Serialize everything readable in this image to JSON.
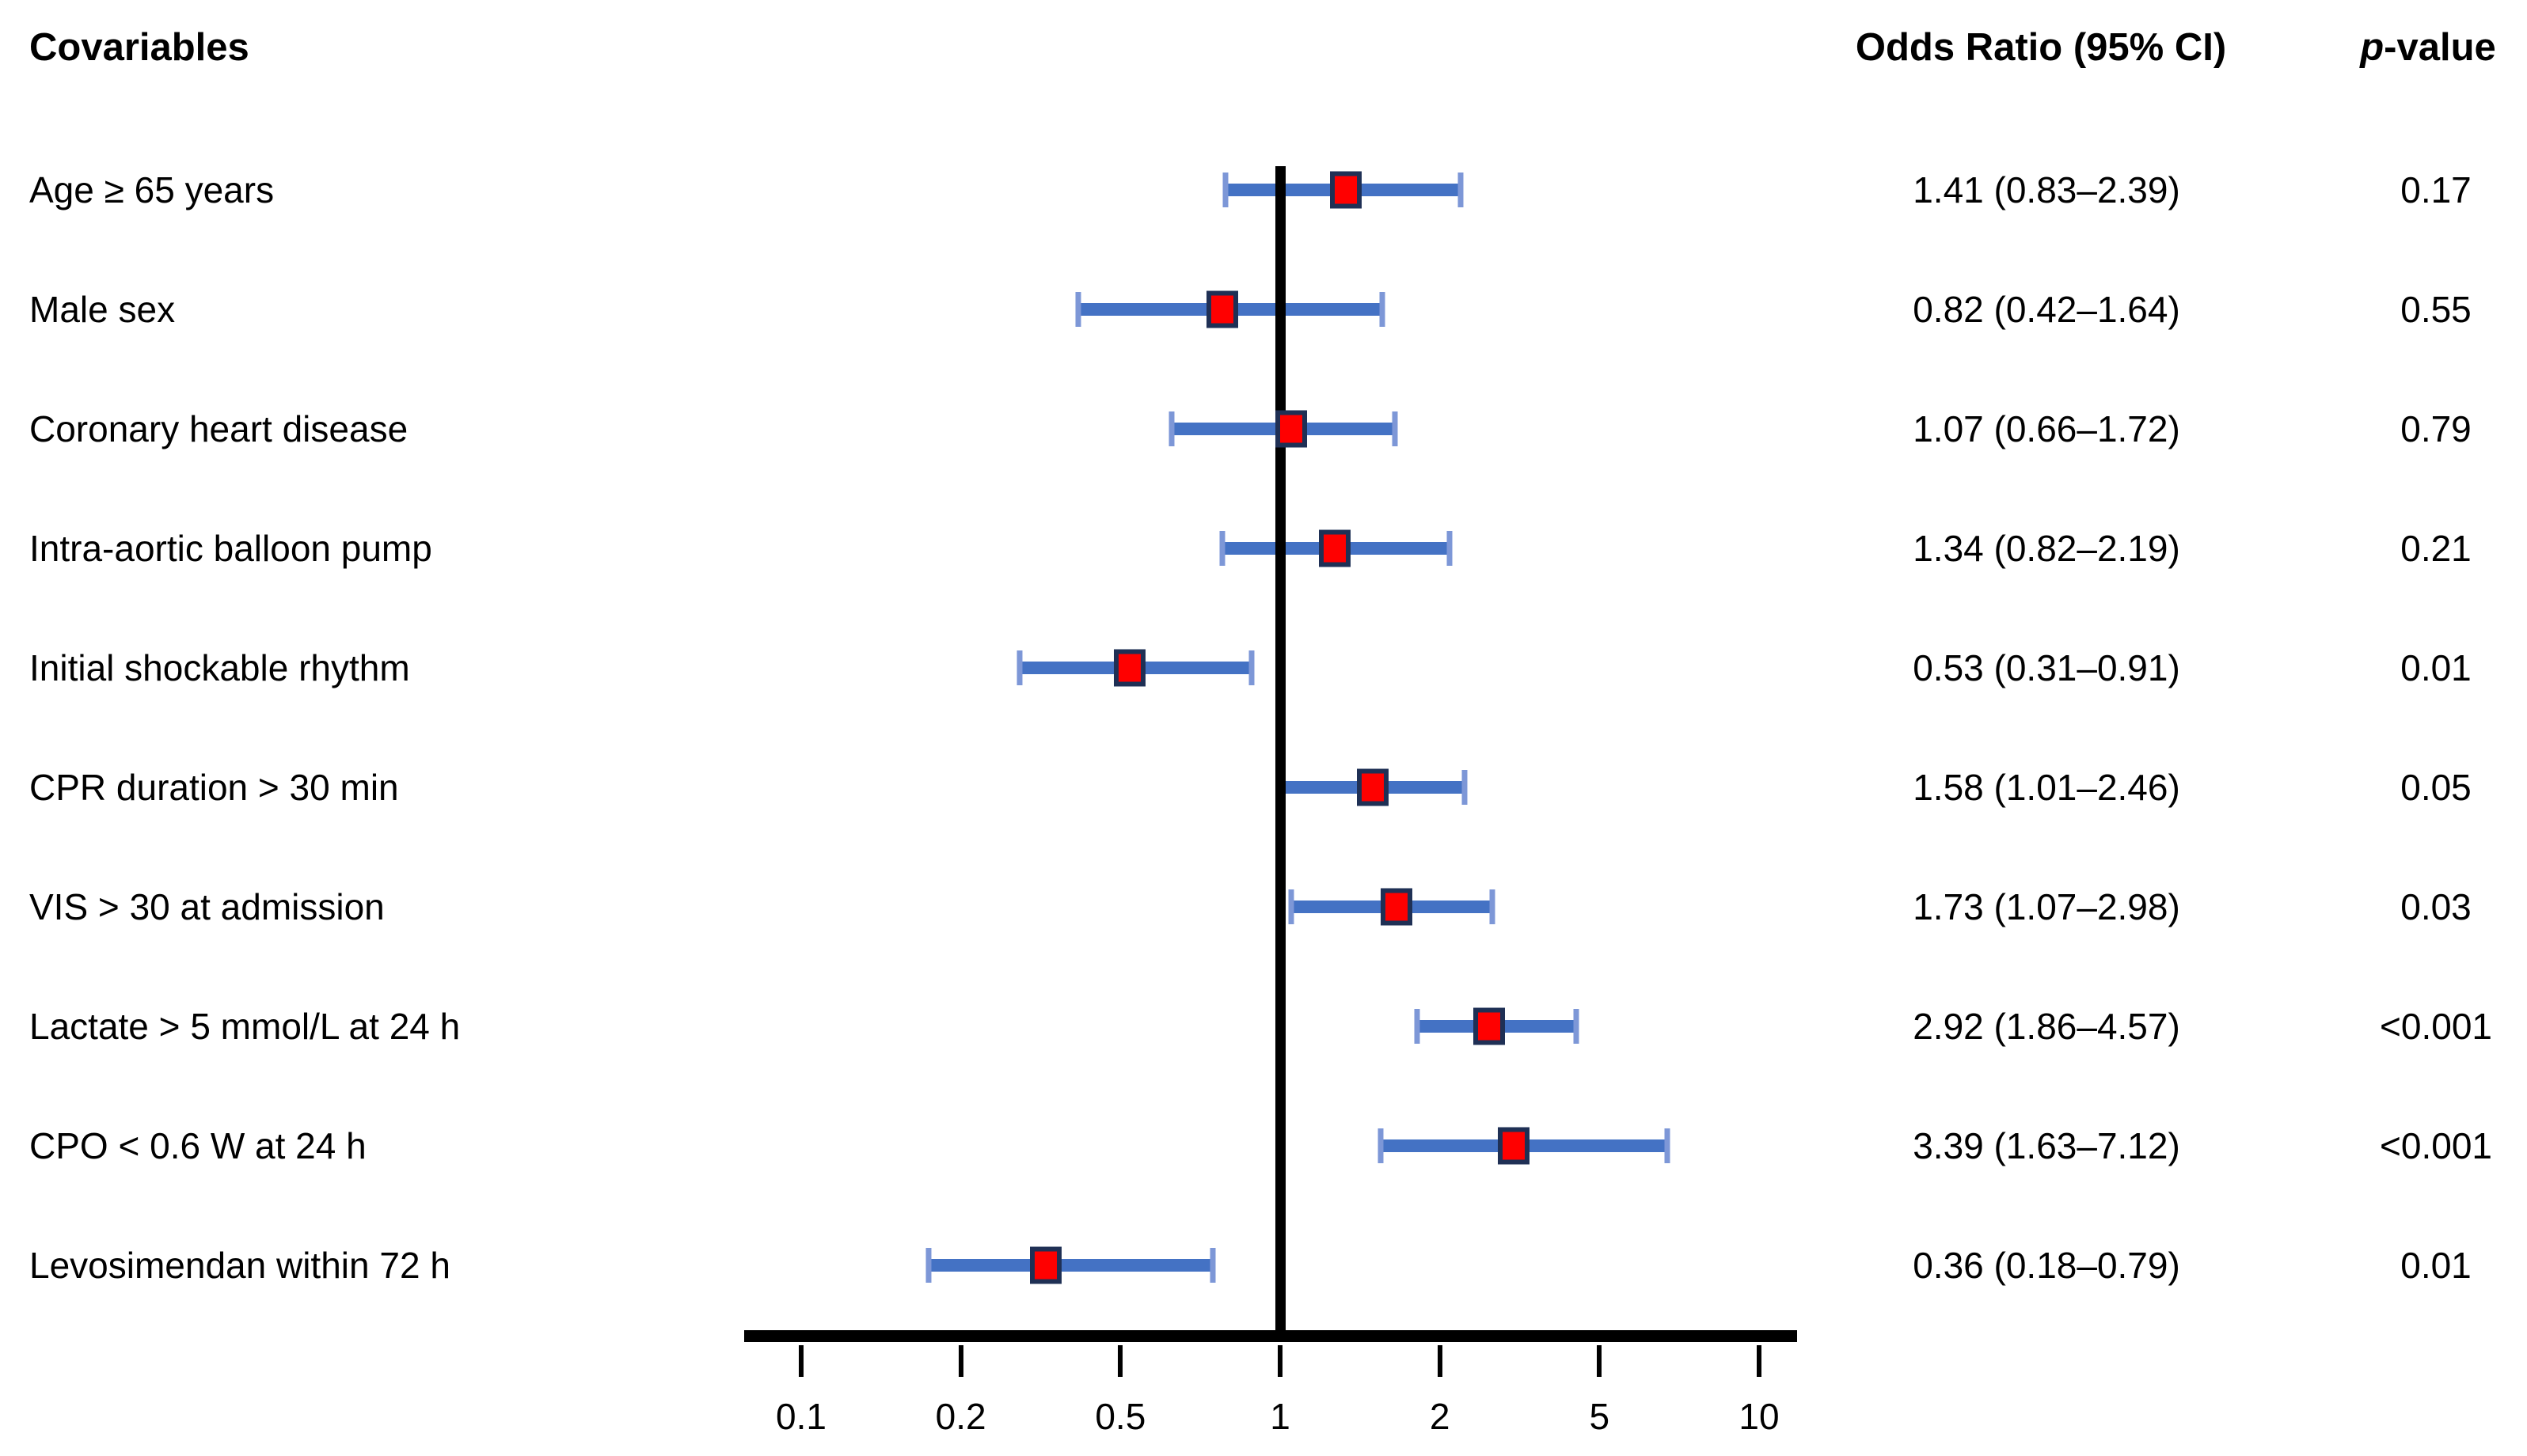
{
  "headers": {
    "covariables": "Covariables",
    "or_ci": "Odds Ratio (95% CI)",
    "p_italic": "p",
    "p_rest": "-value"
  },
  "chart_data": {
    "type": "scatter",
    "subtype": "forest-plot",
    "title": "",
    "xlabel": "",
    "ylabel": "",
    "x_axis": {
      "scale": "log-like (even tick spacing, linear interpolation between ticks)",
      "ticks": [
        0.1,
        0.2,
        0.5,
        1,
        2,
        5,
        10
      ],
      "tick_labels": [
        "0.1",
        "0.2",
        "0.5",
        "1",
        "2",
        "5",
        "10"
      ],
      "reference_line_value": 1,
      "grid": "off"
    },
    "legend": "none",
    "rows": [
      {
        "label": "Age ≥ 65 years",
        "or": 1.41,
        "ci_low": 0.83,
        "ci_high": 2.39,
        "or_ci_text": "1.41 (0.83–2.39)",
        "p_text": "0.17"
      },
      {
        "label": "Male sex",
        "or": 0.82,
        "ci_low": 0.42,
        "ci_high": 1.64,
        "or_ci_text": "0.82 (0.42–1.64)",
        "p_text": "0.55"
      },
      {
        "label": "Coronary heart disease",
        "or": 1.07,
        "ci_low": 0.66,
        "ci_high": 1.72,
        "or_ci_text": "1.07 (0.66–1.72)",
        "p_text": "0.79"
      },
      {
        "label": "Intra-aortic balloon pump",
        "or": 1.34,
        "ci_low": 0.82,
        "ci_high": 2.19,
        "or_ci_text": "1.34 (0.82–2.19)",
        "p_text": "0.21"
      },
      {
        "label": "Initial shockable rhythm",
        "or": 0.53,
        "ci_low": 0.31,
        "ci_high": 0.91,
        "or_ci_text": "0.53 (0.31–0.91)",
        "p_text": "0.01"
      },
      {
        "label": "CPR duration > 30 min",
        "or": 1.58,
        "ci_low": 1.01,
        "ci_high": 2.46,
        "or_ci_text": "1.58 (1.01–2.46)",
        "p_text": "0.05"
      },
      {
        "label": "VIS > 30 at admission",
        "or": 1.73,
        "ci_low": 1.07,
        "ci_high": 2.98,
        "or_ci_text": "1.73 (1.07–2.98)",
        "p_text": "0.03"
      },
      {
        "label": "Lactate > 5 mmol/L at 24 h",
        "or": 2.92,
        "ci_low": 1.86,
        "ci_high": 4.57,
        "or_ci_text": "2.92 (1.86–4.57)",
        "p_text": "<0.001"
      },
      {
        "label": "CPO < 0.6 W at 24 h",
        "or": 3.39,
        "ci_low": 1.63,
        "ci_high": 7.12,
        "or_ci_text": "3.39 (1.63–7.12)",
        "p_text": "<0.001"
      },
      {
        "label": "Levosimendan within 72 h",
        "or": 0.36,
        "ci_low": 0.18,
        "ci_high": 0.79,
        "or_ci_text": "0.36 (0.18–0.79)",
        "p_text": "0.01"
      }
    ],
    "colors": {
      "ci_bar": "#4472C4",
      "ci_cap": "#7D97D7",
      "marker_fill": "#FF0000",
      "marker_border": "#1F3055",
      "axis": "#000000",
      "text": "#000000",
      "background": "#FFFFFF"
    }
  }
}
